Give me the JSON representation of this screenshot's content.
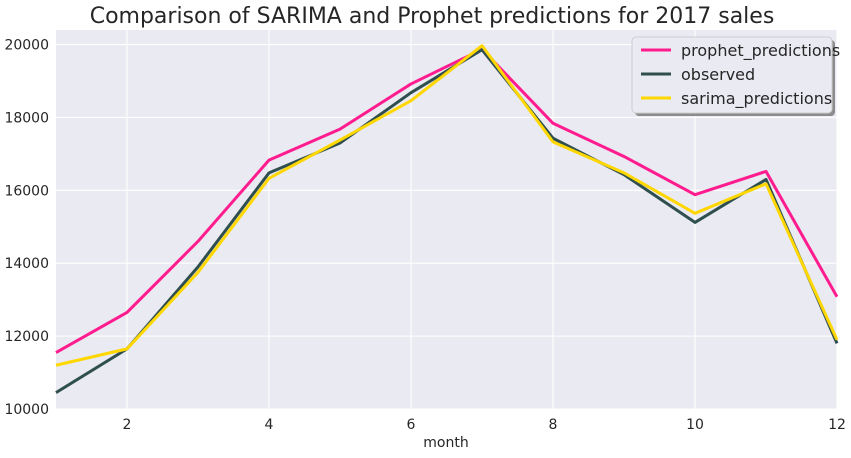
{
  "chart_data": {
    "type": "line",
    "title": "Comparison of SARIMA and Prophet predictions for 2017 sales",
    "xlabel": "month",
    "ylabel": "",
    "xlim": [
      1,
      12
    ],
    "ylim": [
      10000,
      20400
    ],
    "x": [
      1,
      2,
      3,
      4,
      5,
      6,
      7,
      8,
      9,
      10,
      11,
      12
    ],
    "xticks": [
      2,
      4,
      6,
      8,
      10,
      12
    ],
    "yticks": [
      10000,
      12000,
      14000,
      16000,
      18000,
      20000
    ],
    "grid": true,
    "legend_position": "top-right",
    "background": "#eaeaf2",
    "series": [
      {
        "name": "prophet_predictions",
        "color": "#ff1c8f",
        "values": [
          11550,
          12650,
          14600,
          16830,
          17680,
          18920,
          19870,
          17840,
          16930,
          15880,
          16520,
          13080
        ]
      },
      {
        "name": "observed",
        "color": "#2f4f4f",
        "values": [
          10450,
          11650,
          13900,
          16480,
          17300,
          18680,
          19860,
          17430,
          16430,
          15120,
          16300,
          11800
        ]
      },
      {
        "name": "sarima_predictions",
        "color": "#ffd700",
        "values": [
          11200,
          11650,
          13750,
          16330,
          17380,
          18460,
          19970,
          17330,
          16480,
          15370,
          16180,
          11900
        ]
      }
    ]
  }
}
